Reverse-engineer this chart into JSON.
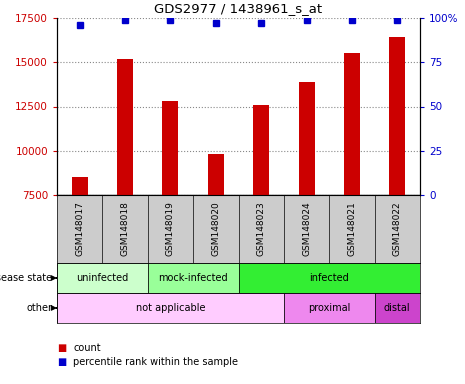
{
  "title": "GDS2977 / 1438961_s_at",
  "samples": [
    "GSM148017",
    "GSM148018",
    "GSM148019",
    "GSM148020",
    "GSM148023",
    "GSM148024",
    "GSM148021",
    "GSM148022"
  ],
  "counts": [
    8500,
    15200,
    12800,
    9800,
    12600,
    13900,
    15500,
    16400
  ],
  "percentile_ranks": [
    96,
    99,
    99,
    97,
    97,
    99,
    99,
    99
  ],
  "ylim_left": [
    7500,
    17500
  ],
  "ylim_right": [
    0,
    100
  ],
  "yticks_left": [
    7500,
    10000,
    12500,
    15000,
    17500
  ],
  "yticks_right": [
    0,
    25,
    50,
    75,
    100
  ],
  "bar_color": "#cc0000",
  "dot_color": "#0000cc",
  "bar_width": 0.35,
  "disease_state_labels": [
    {
      "label": "uninfected",
      "start": 0,
      "end": 2,
      "color": "#ccffcc"
    },
    {
      "label": "mock-infected",
      "start": 2,
      "end": 4,
      "color": "#99ff99"
    },
    {
      "label": "infected",
      "start": 4,
      "end": 8,
      "color": "#33ee33"
    }
  ],
  "other_labels": [
    {
      "label": "not applicable",
      "start": 0,
      "end": 5,
      "color": "#ffccff"
    },
    {
      "label": "proximal",
      "start": 5,
      "end": 7,
      "color": "#ee88ee"
    },
    {
      "label": "distal",
      "start": 7,
      "end": 8,
      "color": "#cc44cc"
    }
  ],
  "sample_bg_color": "#cccccc",
  "grid_color": "#888888",
  "tick_label_color_left": "#cc0000",
  "tick_label_color_right": "#0000cc",
  "fig_width": 4.65,
  "fig_height": 3.84,
  "fig_dpi": 100
}
